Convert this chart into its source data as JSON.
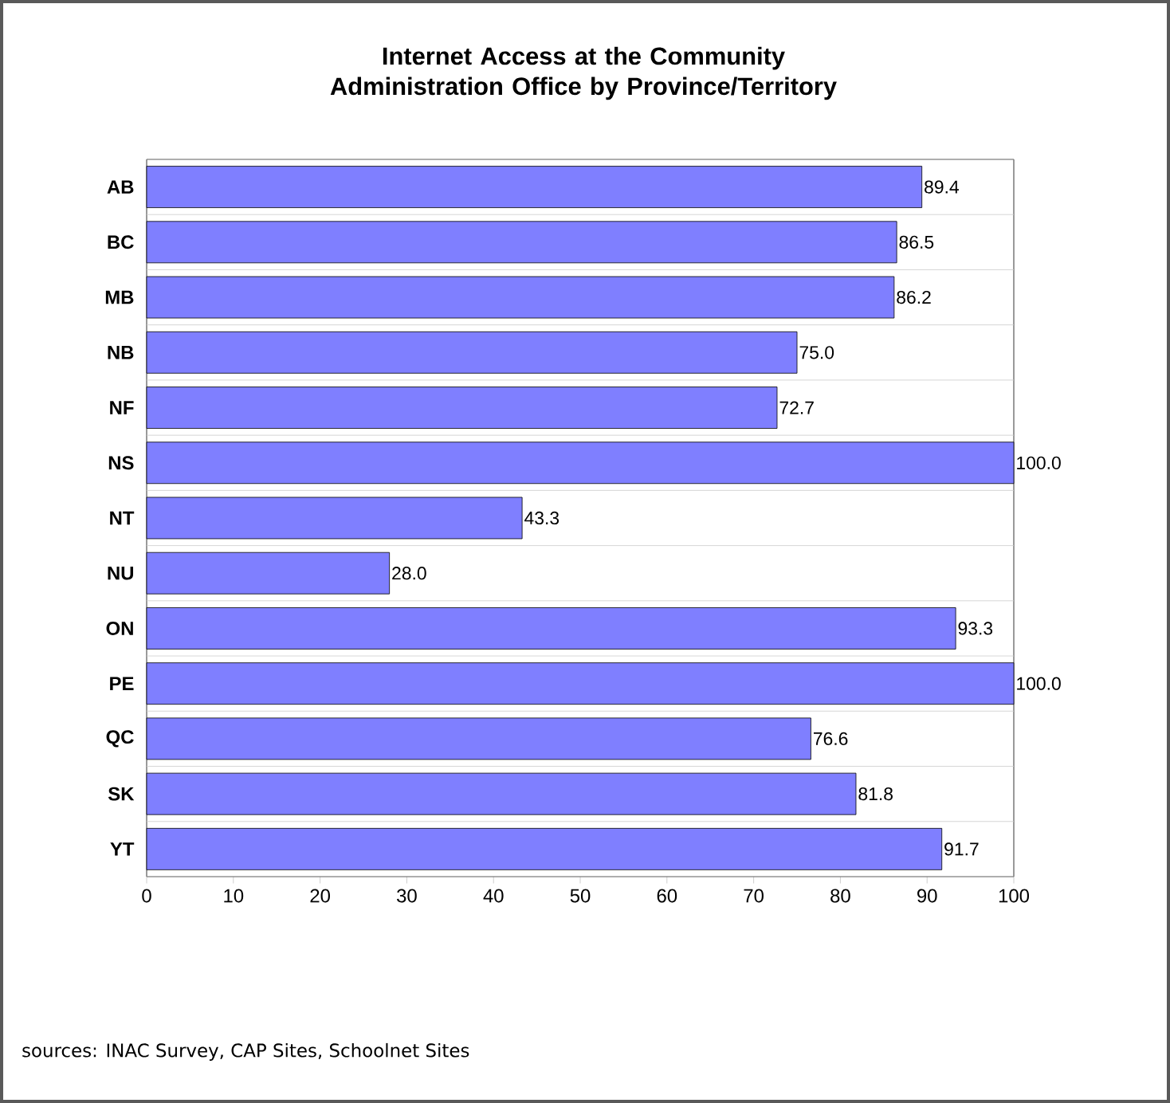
{
  "chart_data": {
    "type": "bar",
    "orientation": "horizontal",
    "title": "Internet Access at the Community Administration Office by Province/Territory",
    "categories": [
      "AB",
      "BC",
      "MB",
      "NB",
      "NF",
      "NS",
      "NT",
      "NU",
      "ON",
      "PE",
      "QC",
      "SK",
      "YT"
    ],
    "values": [
      89.4,
      86.5,
      86.2,
      75.0,
      72.7,
      100.0,
      43.3,
      28.0,
      93.3,
      100.0,
      76.6,
      81.8,
      91.7
    ],
    "value_labels": [
      "89.4",
      "86.5",
      "86.2",
      "75.0",
      "72.7",
      "100.0",
      "43.3",
      "28.0",
      "93.3",
      "100.0",
      "76.6",
      "81.8",
      "91.7"
    ],
    "color": "#7f7fff",
    "xlim": [
      0,
      100
    ],
    "xticks": [
      0,
      10,
      20,
      30,
      40,
      50,
      60,
      70,
      80,
      90,
      100
    ],
    "grid": "y",
    "annotations": [
      "sources: INAC Survey, CAP Sites, Schoolnet Sites"
    ]
  }
}
